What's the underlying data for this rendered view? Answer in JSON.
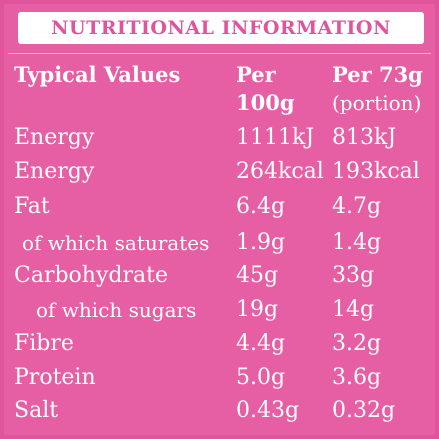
{
  "title": "NUTRITIONAL INFORMATION",
  "headers": {
    "label": "Typical Values",
    "per100_line1": "Per",
    "per100_line2": "100g",
    "portion_line1": "Per 73g",
    "portion_line2": "(portion)"
  },
  "rows": [
    {
      "label": "Energy",
      "per100": "1111kJ",
      "portion": "813kJ"
    },
    {
      "label": "Energy",
      "per100": "264kcal",
      "portion": "193kcal"
    },
    {
      "label": "Fat",
      "per100": "6.4g",
      "portion": "4.7g"
    },
    {
      "label": "of which saturates",
      "per100": "1.9g",
      "portion": "1.4g"
    },
    {
      "label": "Carbohydrate",
      "per100": "45g",
      "portion": "33g"
    },
    {
      "label": "of which sugars",
      "per100": "19g",
      "portion": "14g"
    },
    {
      "label": "Fibre",
      "per100": "4.4g",
      "portion": "3.2g"
    },
    {
      "label": "Protein",
      "per100": "5.0g",
      "portion": "3.6g"
    },
    {
      "label": "Salt",
      "per100": "0.43g",
      "portion": "0.32g"
    }
  ],
  "colors": {
    "background": "#e0549b",
    "panel": "#e65fa4",
    "text": "#ffffff"
  }
}
